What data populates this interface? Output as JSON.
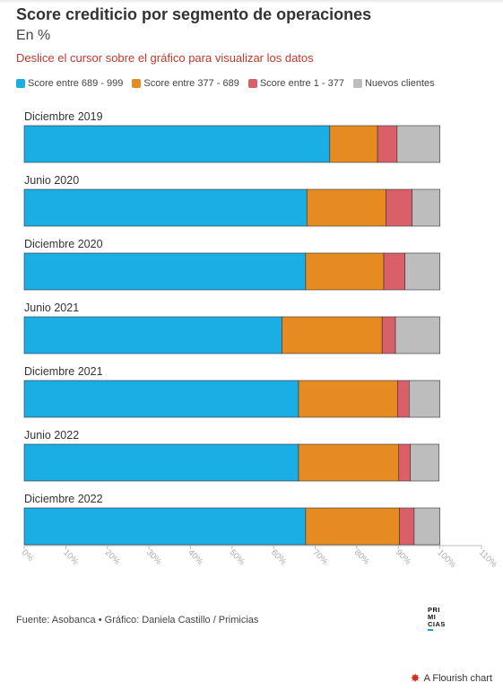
{
  "title": "Score crediticio por segmento de operaciones",
  "subtitle": "En %",
  "note": "Deslice el cursor sobre el gráfico para visualizar los datos",
  "footer": "Fuente: Asobanca • Gráfico: Daniela Castillo / Primicias",
  "logo_text": "PRIMICIAS",
  "flourish": {
    "icon": "flourish-star-icon",
    "label": "A Flourish chart"
  },
  "chart_data": {
    "type": "bar",
    "orientation": "horizontal",
    "stacked": true,
    "categories": [
      "Diciembre 2019",
      "Junio 2020",
      "Diciembre 2020",
      "Junio 2021",
      "Diciembre 2021",
      "Junio 2022",
      "Diciembre 2022"
    ],
    "series": [
      {
        "name": "Score entre 689 - 999",
        "color": "#1aaee5",
        "values": [
          73.5,
          68,
          67.7,
          62,
          66,
          66,
          67.7
        ]
      },
      {
        "name": "Score entre 377 - 689",
        "color": "#e68a22",
        "values": [
          11.5,
          19,
          18.8,
          24.1,
          23.8,
          24.1,
          22.6
        ]
      },
      {
        "name": "Score entre 1 - 377",
        "color": "#d95f68",
        "values": [
          4.7,
          6.3,
          5.1,
          3.2,
          2.8,
          2.8,
          3.5
        ]
      },
      {
        "name": "Nuevos clientes",
        "color": "#bdbdbd",
        "values": [
          10.3,
          6.7,
          8.4,
          10.7,
          7.4,
          6.9,
          6.2
        ]
      }
    ],
    "xlim": [
      0,
      110
    ],
    "x_ticks": [
      "0%",
      "10%",
      "20%",
      "30%",
      "40%",
      "50%",
      "60%",
      "70%",
      "80%",
      "90%",
      "100%",
      "110%"
    ],
    "legend_position": "top",
    "grid": false
  }
}
